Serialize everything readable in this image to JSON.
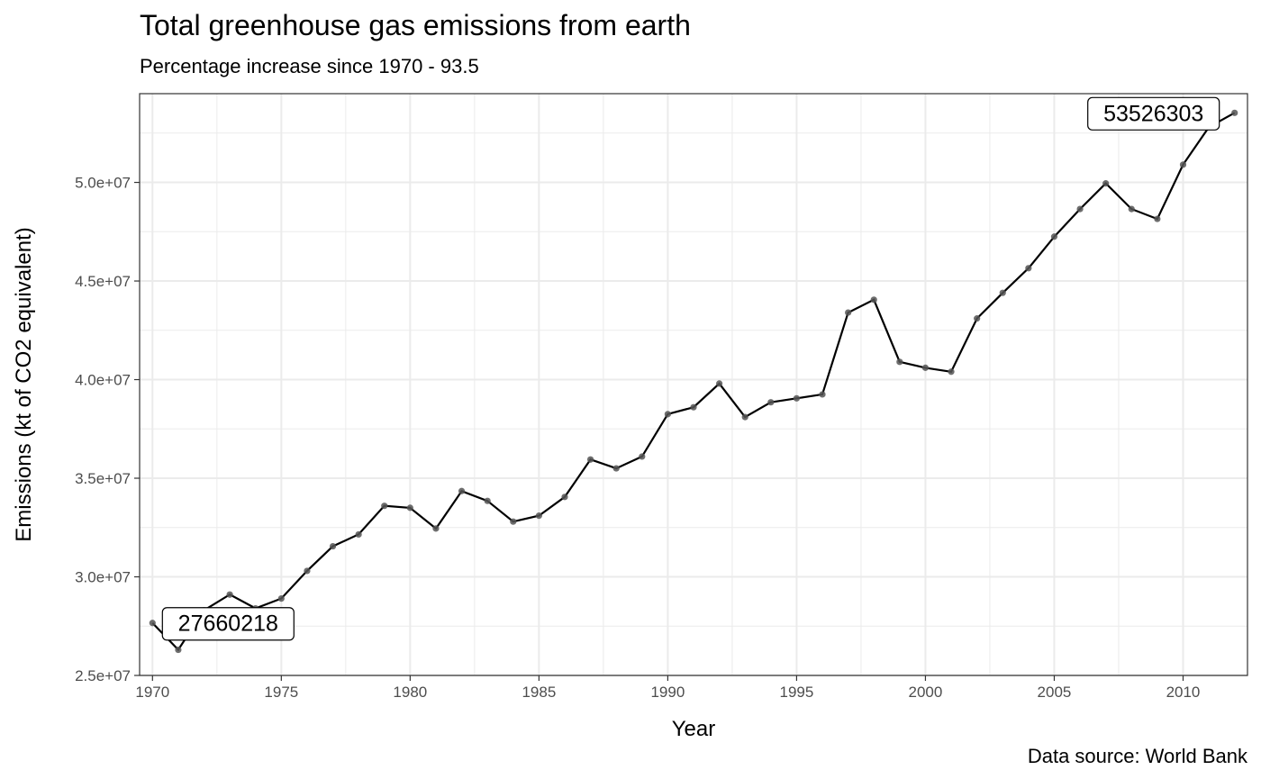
{
  "chart_data": {
    "type": "line",
    "title": "Total greenhouse gas emissions from earth",
    "subtitle": "Percentage increase since 1970 - 93.5",
    "caption": "Data source: World Bank",
    "xlabel": "Year",
    "ylabel": "Emissions (kt of CO2 equivalent)",
    "xlim": [
      1969.5,
      2012.5
    ],
    "ylim": [
      25000000,
      54500000
    ],
    "x_ticks": [
      1970,
      1975,
      1980,
      1985,
      1990,
      1995,
      2000,
      2005,
      2010
    ],
    "x_tick_labels": [
      "1970",
      "1975",
      "1980",
      "1985",
      "1990",
      "1995",
      "2000",
      "2005",
      "2010"
    ],
    "y_ticks": [
      25000000,
      30000000,
      35000000,
      40000000,
      45000000,
      50000000
    ],
    "y_tick_labels": [
      "2.5e+07",
      "3.0e+07",
      "3.5e+07",
      "4.0e+07",
      "4.5e+07",
      "5.0e+07"
    ],
    "grid": true,
    "x": [
      1970,
      1971,
      1972,
      1973,
      1974,
      1975,
      1976,
      1977,
      1978,
      1979,
      1980,
      1981,
      1982,
      1983,
      1984,
      1985,
      1986,
      1987,
      1988,
      1989,
      1990,
      1991,
      1992,
      1993,
      1994,
      1995,
      1996,
      1997,
      1998,
      1999,
      2000,
      2001,
      2002,
      2003,
      2004,
      2005,
      2006,
      2007,
      2008,
      2009,
      2010,
      2011,
      2012
    ],
    "values": [
      27660218,
      26300000,
      28300000,
      29100000,
      28400000,
      28900000,
      30300000,
      31550000,
      32150000,
      33600000,
      33500000,
      32450000,
      34350000,
      33850000,
      32800000,
      33100000,
      34050000,
      35950000,
      35500000,
      36100000,
      38250000,
      38600000,
      39800000,
      38100000,
      38850000,
      39050000,
      39250000,
      43400000,
      44050000,
      40900000,
      40600000,
      40400000,
      43100000,
      44400000,
      45650000,
      47250000,
      48650000,
      49950000,
      48650000,
      48150000,
      50900000,
      52800000,
      53526303
    ],
    "annotations": [
      {
        "x": 1970,
        "y": 27660218,
        "label": "27660218"
      },
      {
        "x": 2012,
        "y": 53526303,
        "label": "53526303"
      }
    ],
    "colors": {
      "line": "#000000",
      "point": "#555555",
      "grid": "#ebebeb",
      "border": "#333333",
      "tick_text": "#4d4d4d"
    }
  }
}
